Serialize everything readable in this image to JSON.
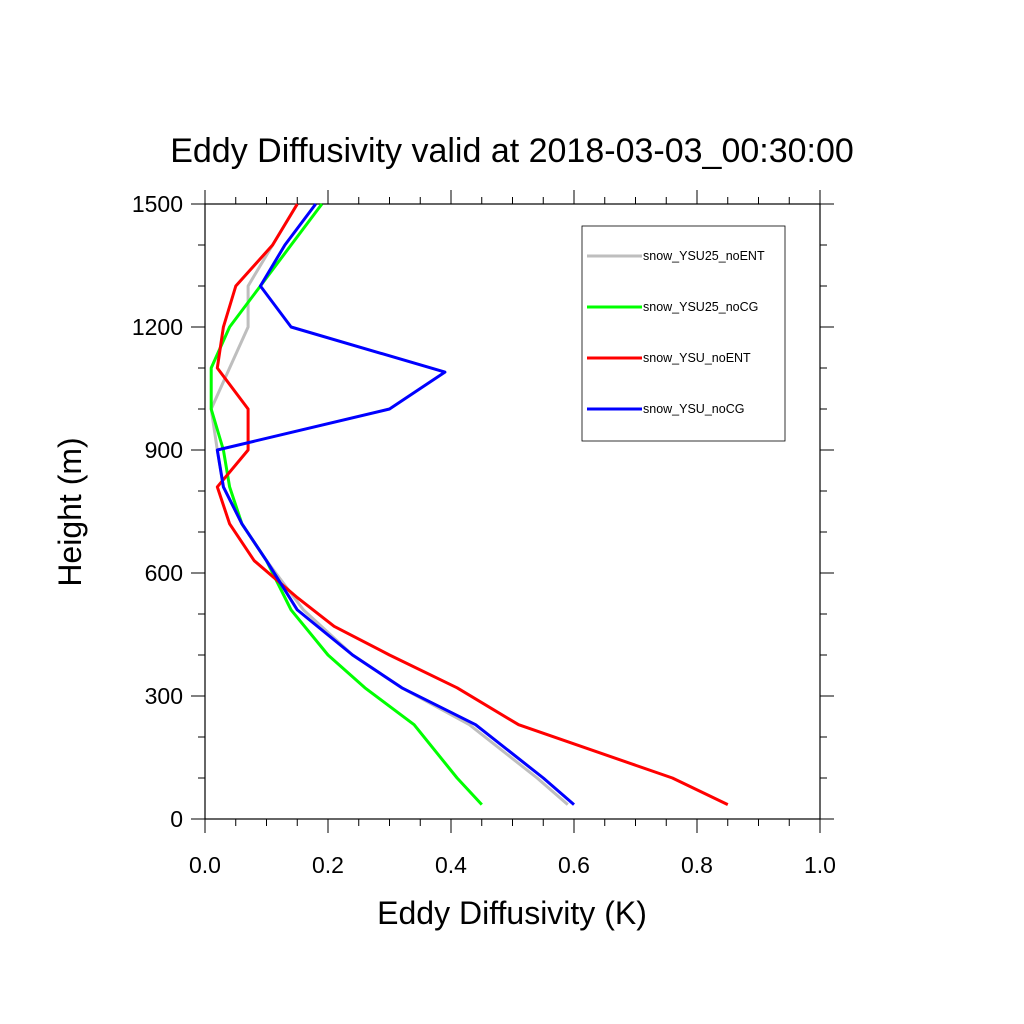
{
  "chart_data": {
    "type": "line",
    "title": "Eddy Diffusivity valid at 2018-03-03_00:30:00",
    "xlabel": "Eddy Diffusivity (K)",
    "ylabel": "Height (m)",
    "xlim": [
      0,
      1.0
    ],
    "ylim": [
      0,
      1500
    ],
    "x_ticks": [
      0.0,
      0.2,
      0.4,
      0.6,
      0.8,
      1.0
    ],
    "x_tick_labels": [
      "0.0",
      "0.2",
      "0.4",
      "0.6",
      "0.8",
      "1.0"
    ],
    "y_ticks": [
      0,
      300,
      600,
      900,
      1200,
      1500
    ],
    "y_tick_labels": [
      "0",
      "300",
      "600",
      "900",
      "1200",
      "1500"
    ],
    "grid": false,
    "legend_position": "top-right",
    "series": [
      {
        "name": "snow_YSU25_noENT",
        "color": "#bebebe",
        "points": [
          [
            0.59,
            35
          ],
          [
            0.54,
            100
          ],
          [
            0.43,
            230
          ],
          [
            0.32,
            320
          ],
          [
            0.24,
            400
          ],
          [
            0.16,
            510
          ],
          [
            0.1,
            630
          ],
          [
            0.06,
            720
          ],
          [
            0.03,
            810
          ],
          [
            0.02,
            900
          ],
          [
            0.01,
            1000
          ],
          [
            0.04,
            1100
          ],
          [
            0.07,
            1200
          ],
          [
            0.07,
            1300
          ],
          [
            0.11,
            1400
          ],
          [
            0.15,
            1500
          ]
        ]
      },
      {
        "name": "snow_YSU25_noCG",
        "color": "#00ff00",
        "points": [
          [
            0.45,
            35
          ],
          [
            0.41,
            100
          ],
          [
            0.34,
            230
          ],
          [
            0.26,
            320
          ],
          [
            0.2,
            400
          ],
          [
            0.14,
            510
          ],
          [
            0.1,
            630
          ],
          [
            0.06,
            720
          ],
          [
            0.04,
            810
          ],
          [
            0.03,
            900
          ],
          [
            0.01,
            1000
          ],
          [
            0.01,
            1100
          ],
          [
            0.04,
            1200
          ],
          [
            0.09,
            1300
          ],
          [
            0.14,
            1400
          ],
          [
            0.19,
            1500
          ]
        ]
      },
      {
        "name": "snow_YSU_noENT",
        "color": "#ff0000",
        "points": [
          [
            0.85,
            35
          ],
          [
            0.76,
            100
          ],
          [
            0.51,
            230
          ],
          [
            0.41,
            320
          ],
          [
            0.3,
            400
          ],
          [
            0.21,
            470
          ],
          [
            0.15,
            540
          ],
          [
            0.08,
            630
          ],
          [
            0.04,
            720
          ],
          [
            0.02,
            810
          ],
          [
            0.07,
            900
          ],
          [
            0.07,
            1000
          ],
          [
            0.02,
            1100
          ],
          [
            0.03,
            1200
          ],
          [
            0.05,
            1300
          ],
          [
            0.11,
            1400
          ],
          [
            0.15,
            1500
          ]
        ]
      },
      {
        "name": "snow_YSU_noCG",
        "color": "#0000ff",
        "points": [
          [
            0.6,
            35
          ],
          [
            0.55,
            100
          ],
          [
            0.44,
            230
          ],
          [
            0.32,
            320
          ],
          [
            0.24,
            400
          ],
          [
            0.15,
            510
          ],
          [
            0.1,
            630
          ],
          [
            0.06,
            720
          ],
          [
            0.03,
            810
          ],
          [
            0.02,
            900
          ],
          [
            0.3,
            1000
          ],
          [
            0.39,
            1090
          ],
          [
            0.14,
            1200
          ],
          [
            0.09,
            1300
          ],
          [
            0.13,
            1400
          ],
          [
            0.18,
            1500
          ]
        ]
      }
    ]
  }
}
